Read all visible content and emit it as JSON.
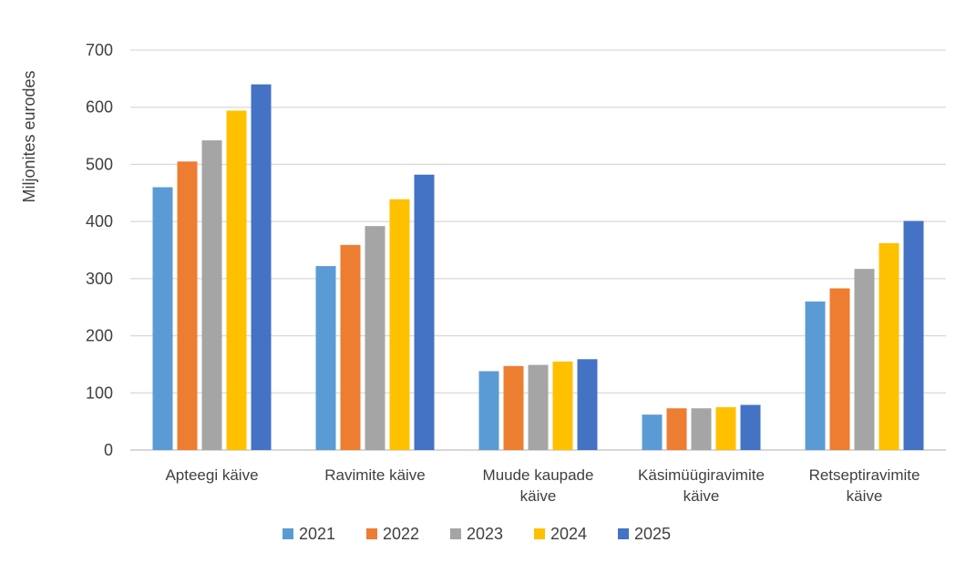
{
  "chart_data": {
    "type": "bar",
    "ylabel": "Miljonites eurodes",
    "ylim": [
      0,
      700
    ],
    "yticks": [
      0,
      100,
      200,
      300,
      400,
      500,
      600,
      700
    ],
    "grid": true,
    "legend_position": "bottom",
    "categories": [
      [
        "Apteegi käive"
      ],
      [
        "Ravimite käive"
      ],
      [
        "Muude kaupade",
        "käive"
      ],
      [
        "Käsimüügiravimite",
        "käive"
      ],
      [
        "Retseptiravimite",
        "käive"
      ]
    ],
    "series": [
      {
        "name": "2021",
        "color": "#5B9BD5",
        "values": [
          460,
          322,
          138,
          62,
          260
        ]
      },
      {
        "name": "2022",
        "color": "#ED7D31",
        "values": [
          505,
          359,
          147,
          73,
          283
        ]
      },
      {
        "name": "2023",
        "color": "#A5A5A5",
        "values": [
          542,
          392,
          149,
          73,
          317
        ]
      },
      {
        "name": "2024",
        "color": "#FFC000",
        "values": [
          594,
          439,
          155,
          75,
          362
        ]
      },
      {
        "name": "2025",
        "color": "#4472C4",
        "values": [
          640,
          482,
          159,
          79,
          401
        ]
      }
    ]
  }
}
